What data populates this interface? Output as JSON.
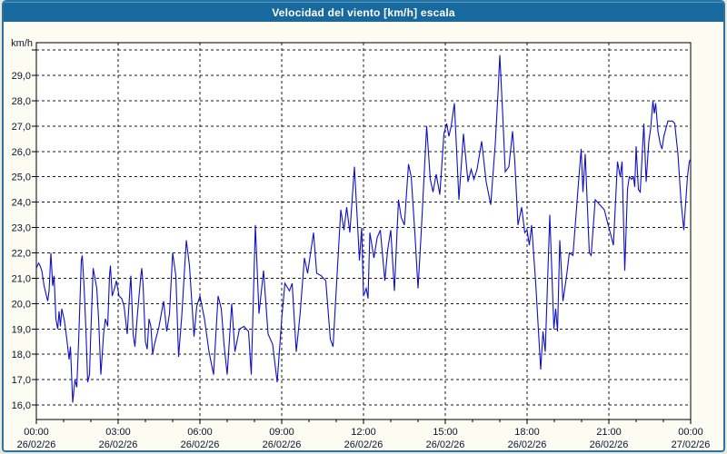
{
  "window": {
    "title": "Velocidad del viento [km/h] escala"
  },
  "colors": {
    "outer_bg": "#ece9d8",
    "window_border": "#2a72a2",
    "titlebar_bg": "#17699e",
    "titlebar_top_edge": "#4aa0cd",
    "title_text": "#ffffff",
    "content_bg": "#fcfcf2",
    "plot_bg": "#ffffff",
    "grid": "#1a1a1a",
    "axis": "#000000",
    "line": "#0f0fc8",
    "label": "#0a1433"
  },
  "chart_data": {
    "type": "line",
    "title": "Velocidad del viento [km/h] escala",
    "ylabel_unit": "km/h",
    "ylim": [
      15.43,
      30.29
    ],
    "xlim_hours": [
      0,
      24
    ],
    "grid": "dashed",
    "y_gridlines": [
      16,
      17,
      18,
      19,
      20,
      21,
      22,
      23,
      24,
      25,
      26,
      27,
      28,
      29,
      30
    ],
    "y_tick_labels": [
      {
        "value": 16,
        "label": "16,0"
      },
      {
        "value": 17,
        "label": "17,0"
      },
      {
        "value": 18,
        "label": "18,0"
      },
      {
        "value": 19,
        "label": "19,0"
      },
      {
        "value": 20,
        "label": "20,0"
      },
      {
        "value": 21,
        "label": "21,0"
      },
      {
        "value": 22,
        "label": "22,0"
      },
      {
        "value": 23,
        "label": "23,0"
      },
      {
        "value": 24,
        "label": "24,0"
      },
      {
        "value": 25,
        "label": "25,0"
      },
      {
        "value": 26,
        "label": "26,0"
      },
      {
        "value": 27,
        "label": "27,0"
      },
      {
        "value": 28,
        "label": "28,0"
      },
      {
        "value": 29,
        "label": "29,0"
      }
    ],
    "x_axis": [
      {
        "hour": 0,
        "time": "00:00",
        "date": "26/02/26"
      },
      {
        "hour": 3,
        "time": "03:00",
        "date": "26/02/26"
      },
      {
        "hour": 6,
        "time": "06:00",
        "date": "26/02/26"
      },
      {
        "hour": 9,
        "time": "09:00",
        "date": "26/02/26"
      },
      {
        "hour": 12,
        "time": "12:00",
        "date": "26/02/26"
      },
      {
        "hour": 15,
        "time": "15:00",
        "date": "26/02/26"
      },
      {
        "hour": 18,
        "time": "18:00",
        "date": "26/02/26"
      },
      {
        "hour": 21,
        "time": "21:00",
        "date": "26/02/26"
      },
      {
        "hour": 24,
        "time": "00:00",
        "date": "27/02/26"
      }
    ],
    "minor_tick_every_hours": 1,
    "series": [
      {
        "name": "wind-speed-kmh",
        "points_t_min_value": [
          [
            0,
            21.4
          ],
          [
            5,
            21.6
          ],
          [
            8,
            21.5
          ],
          [
            12,
            21.3
          ],
          [
            17,
            20.7
          ],
          [
            21,
            20.4
          ],
          [
            25,
            20.1
          ],
          [
            28,
            20.5
          ],
          [
            32,
            22.0
          ],
          [
            36,
            20.7
          ],
          [
            39,
            21.1
          ],
          [
            43,
            19.4
          ],
          [
            47,
            19.0
          ],
          [
            50,
            19.7
          ],
          [
            53,
            19.1
          ],
          [
            56,
            19.8
          ],
          [
            62,
            19.3
          ],
          [
            67,
            18.6
          ],
          [
            72,
            17.8
          ],
          [
            75,
            18.3
          ],
          [
            80,
            16.1
          ],
          [
            85,
            17.0
          ],
          [
            89,
            16.7
          ],
          [
            93,
            18.5
          ],
          [
            99,
            21.7
          ],
          [
            101,
            21.9
          ],
          [
            105,
            20.7
          ],
          [
            109,
            19.0
          ],
          [
            113,
            16.9
          ],
          [
            117,
            17.2
          ],
          [
            120,
            18.9
          ],
          [
            125,
            21.4
          ],
          [
            129,
            21.0
          ],
          [
            133,
            20.6
          ],
          [
            137,
            19.4
          ],
          [
            142,
            17.2
          ],
          [
            148,
            18.8
          ],
          [
            152,
            19.4
          ],
          [
            157,
            19.1
          ],
          [
            161,
            21.1
          ],
          [
            163,
            21.5
          ],
          [
            167,
            20.3
          ],
          [
            172,
            20.6
          ],
          [
            176,
            20.9
          ],
          [
            182,
            20.3
          ],
          [
            188,
            20.2
          ],
          [
            193,
            19.9
          ],
          [
            200,
            18.8
          ],
          [
            206,
            20.6
          ],
          [
            208,
            21.1
          ],
          [
            213,
            18.8
          ],
          [
            217,
            18.3
          ],
          [
            223,
            19.7
          ],
          [
            230,
            21.1
          ],
          [
            232,
            21.4
          ],
          [
            235,
            20.7
          ],
          [
            240,
            18.5
          ],
          [
            244,
            18.2
          ],
          [
            248,
            19.4
          ],
          [
            252,
            19.1
          ],
          [
            256,
            18.0
          ],
          [
            260,
            18.4
          ],
          [
            270,
            19.1
          ],
          [
            280,
            20.1
          ],
          [
            287,
            18.9
          ],
          [
            293,
            19.6
          ],
          [
            300,
            22.0
          ],
          [
            307,
            21.1
          ],
          [
            313,
            17.9
          ],
          [
            320,
            19.5
          ],
          [
            330,
            22.5
          ],
          [
            337,
            21.5
          ],
          [
            347,
            18.7
          ],
          [
            353,
            19.9
          ],
          [
            360,
            20.3
          ],
          [
            370,
            19.4
          ],
          [
            380,
            18.1
          ],
          [
            390,
            17.2
          ],
          [
            400,
            20.3
          ],
          [
            407,
            19.8
          ],
          [
            413,
            18.4
          ],
          [
            420,
            17.2
          ],
          [
            430,
            20.0
          ],
          [
            437,
            18.1
          ],
          [
            447,
            19.0
          ],
          [
            457,
            19.1
          ],
          [
            467,
            18.9
          ],
          [
            473,
            17.2
          ],
          [
            482,
            23.1
          ],
          [
            490,
            19.6
          ],
          [
            500,
            21.3
          ],
          [
            510,
            18.8
          ],
          [
            520,
            18.4
          ],
          [
            530,
            16.9
          ],
          [
            540,
            19.4
          ],
          [
            547,
            20.8
          ],
          [
            557,
            20.5
          ],
          [
            563,
            20.8
          ],
          [
            572,
            18.1
          ],
          [
            580,
            19.5
          ],
          [
            590,
            21.8
          ],
          [
            597,
            21.2
          ],
          [
            610,
            22.8
          ],
          [
            617,
            21.2
          ],
          [
            627,
            21.1
          ],
          [
            637,
            20.9
          ],
          [
            647,
            18.6
          ],
          [
            653,
            18.3
          ],
          [
            663,
            21.5
          ],
          [
            670,
            23.7
          ],
          [
            677,
            22.9
          ],
          [
            683,
            23.8
          ],
          [
            690,
            22.8
          ],
          [
            700,
            25.4
          ],
          [
            707,
            23.1
          ],
          [
            711,
            21.7
          ],
          [
            716,
            23.0
          ],
          [
            720,
            20.3
          ],
          [
            726,
            20.6
          ],
          [
            730,
            20.2
          ],
          [
            734,
            22.8
          ],
          [
            743,
            21.8
          ],
          [
            750,
            22.6
          ],
          [
            757,
            22.9
          ],
          [
            767,
            20.9
          ],
          [
            773,
            22.1
          ],
          [
            780,
            22.9
          ],
          [
            788,
            20.5
          ],
          [
            797,
            24.1
          ],
          [
            803,
            23.4
          ],
          [
            810,
            23.1
          ],
          [
            819,
            25.5
          ],
          [
            825,
            25.0
          ],
          [
            833,
            22.8
          ],
          [
            840,
            20.6
          ],
          [
            847,
            22.8
          ],
          [
            859,
            27.0
          ],
          [
            867,
            24.9
          ],
          [
            873,
            24.4
          ],
          [
            880,
            25.1
          ],
          [
            888,
            24.3
          ],
          [
            897,
            26.7
          ],
          [
            903,
            27.1
          ],
          [
            908,
            26.6
          ],
          [
            913,
            27.0
          ],
          [
            920,
            27.9
          ],
          [
            930,
            24.1
          ],
          [
            940,
            26.7
          ],
          [
            950,
            24.8
          ],
          [
            957,
            25.3
          ],
          [
            963,
            24.9
          ],
          [
            970,
            25.3
          ],
          [
            980,
            26.4
          ],
          [
            990,
            24.8
          ],
          [
            1000,
            23.9
          ],
          [
            1010,
            26.3
          ],
          [
            1016,
            28.3
          ],
          [
            1020,
            29.8
          ],
          [
            1026,
            27.6
          ],
          [
            1032,
            25.2
          ],
          [
            1040,
            25.4
          ],
          [
            1048,
            26.8
          ],
          [
            1053,
            25.6
          ],
          [
            1060,
            23.1
          ],
          [
            1068,
            23.8
          ],
          [
            1075,
            22.8
          ],
          [
            1080,
            22.9
          ],
          [
            1085,
            22.3
          ],
          [
            1090,
            23.1
          ],
          [
            1099,
            20.8
          ],
          [
            1110,
            17.4
          ],
          [
            1115,
            18.9
          ],
          [
            1120,
            18.1
          ],
          [
            1130,
            23.5
          ],
          [
            1139,
            19.0
          ],
          [
            1143,
            19.8
          ],
          [
            1147,
            18.9
          ],
          [
            1152,
            22.5
          ],
          [
            1159,
            20.1
          ],
          [
            1167,
            21.1
          ],
          [
            1173,
            22.0
          ],
          [
            1181,
            21.9
          ],
          [
            1192,
            24.5
          ],
          [
            1199,
            26.1
          ],
          [
            1203,
            24.4
          ],
          [
            1208,
            25.9
          ],
          [
            1217,
            22.0
          ],
          [
            1221,
            21.9
          ],
          [
            1230,
            24.1
          ],
          [
            1240,
            23.9
          ],
          [
            1250,
            23.7
          ],
          [
            1257,
            23.2
          ],
          [
            1263,
            22.8
          ],
          [
            1270,
            22.3
          ],
          [
            1279,
            25.6
          ],
          [
            1285,
            25.0
          ],
          [
            1289,
            25.6
          ],
          [
            1295,
            21.3
          ],
          [
            1301,
            24.5
          ],
          [
            1305,
            25.0
          ],
          [
            1310,
            24.9
          ],
          [
            1314,
            25.0
          ],
          [
            1317,
            24.6
          ],
          [
            1320,
            26.2
          ],
          [
            1325,
            24.5
          ],
          [
            1329,
            24.4
          ],
          [
            1337,
            27.1
          ],
          [
            1342,
            24.8
          ],
          [
            1348,
            26.4
          ],
          [
            1352,
            26.9
          ],
          [
            1357,
            28.0
          ],
          [
            1360,
            27.5
          ],
          [
            1363,
            27.9
          ],
          [
            1368,
            26.8
          ],
          [
            1373,
            26.3
          ],
          [
            1377,
            26.1
          ],
          [
            1381,
            26.6
          ],
          [
            1390,
            27.2
          ],
          [
            1400,
            27.2
          ],
          [
            1405,
            27.1
          ],
          [
            1412,
            25.9
          ],
          [
            1419,
            24.0
          ],
          [
            1425,
            22.9
          ],
          [
            1433,
            25.0
          ],
          [
            1437,
            25.6
          ],
          [
            1440,
            25.7
          ]
        ]
      }
    ]
  }
}
